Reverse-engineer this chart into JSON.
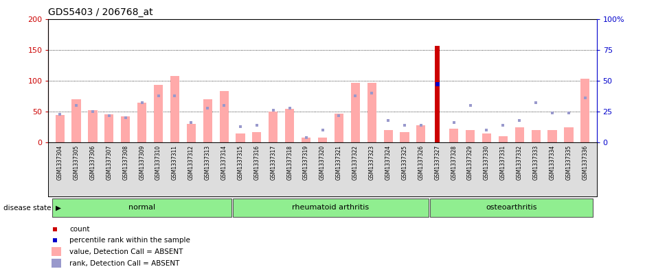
{
  "title": "GDS5403 / 206768_at",
  "samples": [
    "GSM1337304",
    "GSM1337305",
    "GSM1337306",
    "GSM1337307",
    "GSM1337308",
    "GSM1337309",
    "GSM1337310",
    "GSM1337311",
    "GSM1337312",
    "GSM1337313",
    "GSM1337314",
    "GSM1337315",
    "GSM1337316",
    "GSM1337317",
    "GSM1337318",
    "GSM1337319",
    "GSM1337320",
    "GSM1337321",
    "GSM1337322",
    "GSM1337323",
    "GSM1337324",
    "GSM1337325",
    "GSM1337326",
    "GSM1337327",
    "GSM1337328",
    "GSM1337329",
    "GSM1337330",
    "GSM1337331",
    "GSM1337332",
    "GSM1337333",
    "GSM1337334",
    "GSM1337335",
    "GSM1337336"
  ],
  "values_absent": [
    45,
    70,
    52,
    46,
    42,
    65,
    93,
    108,
    30,
    70,
    83,
    15,
    17,
    50,
    55,
    8,
    8,
    47,
    97,
    97,
    20,
    17,
    28,
    0,
    22,
    20,
    15,
    10,
    25,
    20,
    20,
    25,
    103
  ],
  "ranks_absent_pct": [
    23,
    30,
    25,
    22,
    20,
    32,
    38,
    38,
    16,
    28,
    30,
    13,
    14,
    26,
    28,
    4,
    10,
    22,
    38,
    40,
    18,
    14,
    14,
    0,
    16,
    30,
    10,
    14,
    18,
    32,
    24,
    24,
    36
  ],
  "count_bar_idx": 23,
  "count_value": 156,
  "percentile_rank_pct": 47,
  "groups": [
    {
      "label": "normal",
      "start": 0,
      "end": 10
    },
    {
      "label": "rheumatoid arthritis",
      "start": 11,
      "end": 22
    },
    {
      "label": "osteoarthritis",
      "start": 23,
      "end": 32
    }
  ],
  "disease_state_label": "disease state",
  "ylim_left": [
    0,
    200
  ],
  "ylim_right": [
    0,
    100
  ],
  "yticks_left": [
    0,
    50,
    100,
    150,
    200
  ],
  "yticks_right": [
    0,
    25,
    50,
    75,
    100
  ],
  "grid_values": [
    50,
    100,
    150
  ],
  "absent_bar_color": "#FFAAAA",
  "absent_rank_color": "#9999CC",
  "count_color": "#CC0000",
  "percentile_color": "#0000CC",
  "left_axis_color": "#CC0000",
  "right_axis_color": "#0000CC",
  "group_bg_color": "#90EE90",
  "group_border_color": "#555555",
  "xtick_bg_color": "#DDDDDD",
  "tick_label_fontsize": 5.5,
  "title_fontsize": 10,
  "legend_fontsize": 7.5,
  "group_label_fontsize": 8
}
